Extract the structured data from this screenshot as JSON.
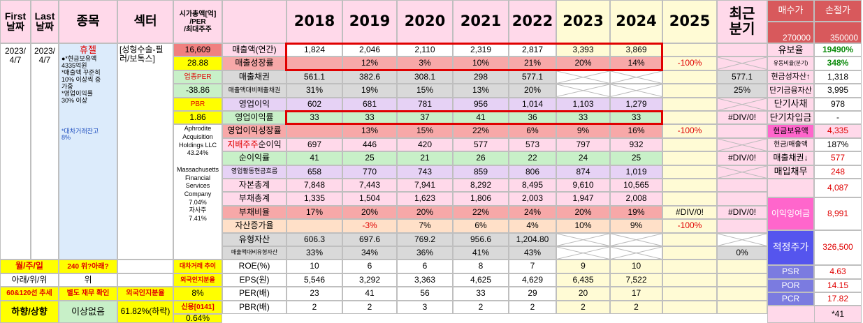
{
  "header": {
    "first_date": "First\n날짜",
    "last_date": "Last\n날짜",
    "item": "종목",
    "sector": "섹터",
    "mktcap": "시가총액[억]\n/PER\n/최대주주",
    "years": [
      "2018",
      "2019",
      "2020",
      "2021",
      "2022",
      "2023",
      "2024",
      "2025"
    ],
    "recent_q": "최근\n분기",
    "buy_label": "매수가",
    "stop_label": "손절가",
    "buy_value": "270000",
    "stop_value": "350000"
  },
  "left": {
    "first_date": "2023/\n4/7",
    "last_date": "2023/\n4/7",
    "status": "휴젤",
    "notes": "●*현금보유액\n4335억원\n*매출액 꾸준히\n10% 이상씩 증\n가중\n*영업이익률\n30% 이상",
    "short_note": "*대차거래잔고\n8%",
    "sector": "[성형수술-필\n러/보톡스]",
    "holders": "Aphrodite\nAcquisition\nHoldings LLC\n43.24%\n\nMassachusetts\nFinancial\nServices\nCompany\n7.04%\n자사주\n7.41%",
    "mktcap": "16,609",
    "per": "28.88",
    "industry_per_label": "업종PER",
    "industry_per": "-38.86",
    "pbr_label": "PBR",
    "pbr": "1.86",
    "week_label": "월/주/일",
    "week_value": "240 위?아래?",
    "trend_label": "아래/위/위",
    "trend_value": "위",
    "ma_label": "60&120선 추세",
    "fin_check": "별도 재무 확인",
    "foreign_label": "외국인지분율",
    "foreign_value": "8%",
    "direction": "하향/상향",
    "no_issue": "이상없음",
    "foreign_pct": "61.82%(하락)",
    "short_trend_label": "대차거래 추이",
    "credit_label": "신용[0141]",
    "credit_value": "0.64%"
  },
  "rows": [
    {
      "label": "매출액(연간)",
      "v": [
        "1,824",
        "2,046",
        "2,110",
        "2,319",
        "2,817",
        "3,393",
        "3,869",
        ""
      ],
      "q": ""
    },
    {
      "label": "매출성장률",
      "v": [
        "",
        "12%",
        "3%",
        "10%",
        "21%",
        "20%",
        "14%",
        "-100%"
      ],
      "q": ""
    },
    {
      "label": "매출채권",
      "v": [
        "561.1",
        "382.6",
        "308.1",
        "298",
        "577.1",
        "",
        "",
        ""
      ],
      "q": "577.1"
    },
    {
      "label": "매출액대비매출채권",
      "v": [
        "31%",
        "19%",
        "15%",
        "13%",
        "20%",
        "",
        "",
        ""
      ],
      "q": "25%"
    },
    {
      "label": "영업이익",
      "v": [
        "602",
        "681",
        "781",
        "956",
        "1,014",
        "1,103",
        "1,279",
        ""
      ],
      "q": ""
    },
    {
      "label": "영업이익률",
      "v": [
        "33",
        "33",
        "37",
        "41",
        "36",
        "33",
        "33",
        ""
      ],
      "q": "#DIV/0!"
    },
    {
      "label": "영업이익성장률",
      "v": [
        "",
        "13%",
        "15%",
        "22%",
        "6%",
        "9%",
        "16%",
        "-100%"
      ],
      "q": ""
    },
    {
      "label": "지배주주순이익",
      "v": [
        "697",
        "446",
        "420",
        "577",
        "573",
        "797",
        "932",
        ""
      ],
      "q": ""
    },
    {
      "label": "순이익률",
      "v": [
        "41",
        "25",
        "21",
        "26",
        "22",
        "24",
        "25",
        ""
      ],
      "q": "#DIV/0!"
    },
    {
      "label": "영업활동현금흐름",
      "v": [
        "658",
        "770",
        "743",
        "859",
        "806",
        "874",
        "1,019",
        ""
      ],
      "q": ""
    },
    {
      "label": "자본총계",
      "v": [
        "7,848",
        "7,443",
        "7,941",
        "8,292",
        "8,495",
        "9,610",
        "10,565",
        ""
      ],
      "q": ""
    },
    {
      "label": "부채총계",
      "v": [
        "1,335",
        "1,504",
        "1,623",
        "1,806",
        "2,003",
        "1,947",
        "2,008",
        ""
      ],
      "q": ""
    },
    {
      "label": "부채비율",
      "v": [
        "17%",
        "20%",
        "20%",
        "22%",
        "24%",
        "20%",
        "19%",
        "#DIV/0!"
      ],
      "q": "#DIV/0!"
    },
    {
      "label": "자산증가율",
      "v": [
        "",
        "-3%",
        "7%",
        "6%",
        "4%",
        "10%",
        "9%",
        "-100%"
      ],
      "q": ""
    },
    {
      "label": "유형자산",
      "v": [
        "606.3",
        "697.6",
        "769.2",
        "956.6",
        "1,204.80",
        "",
        "",
        ""
      ],
      "q": ""
    },
    {
      "label": "매출액대비유형자산",
      "v": [
        "33%",
        "34%",
        "36%",
        "41%",
        "43%",
        "",
        "",
        ""
      ],
      "q": "0%"
    },
    {
      "label": "ROE(%)",
      "v": [
        "10",
        "6",
        "6",
        "8",
        "7",
        "9",
        "10",
        ""
      ],
      "q": ""
    },
    {
      "label": "EPS(원)",
      "v": [
        "5,546",
        "3,292",
        "3,363",
        "4,625",
        "4,629",
        "6,435",
        "7,522",
        ""
      ],
      "q": ""
    },
    {
      "label": "PER(배)",
      "v": [
        "23",
        "41",
        "56",
        "33",
        "29",
        "20",
        "17",
        ""
      ],
      "q": ""
    },
    {
      "label": "PBR(배)",
      "v": [
        "2",
        "2",
        "3",
        "2",
        "2",
        "2",
        "2",
        ""
      ],
      "q": ""
    }
  ],
  "right": [
    {
      "label": "유보율",
      "value": "19490%"
    },
    {
      "label": "유동비율(분기)",
      "value": "348%"
    },
    {
      "label": "현금성자산↑",
      "value": "1,318"
    },
    {
      "label": "단기금융자산",
      "value": "3,995"
    },
    {
      "label": "단기사채",
      "value": "978"
    },
    {
      "label": "단기차입금",
      "value": "-"
    },
    {
      "label": "현금보유액",
      "value": "4,335"
    },
    {
      "label": "현금/매출액",
      "value": "187%"
    },
    {
      "label": "매출채권↓",
      "value": "577"
    },
    {
      "label": "매입채무",
      "value": "248"
    },
    {
      "label": "",
      "value": "4,087"
    },
    {
      "label": "이익잉여금",
      "value": "8,991"
    },
    {
      "label": "적정주가",
      "value": "326,500"
    },
    {
      "label": "PSR",
      "value": "4.63"
    },
    {
      "label": "POR",
      "value": "14.15"
    },
    {
      "label": "PCR",
      "value": "17.82"
    },
    {
      "label": "",
      "value": "*41"
    }
  ]
}
